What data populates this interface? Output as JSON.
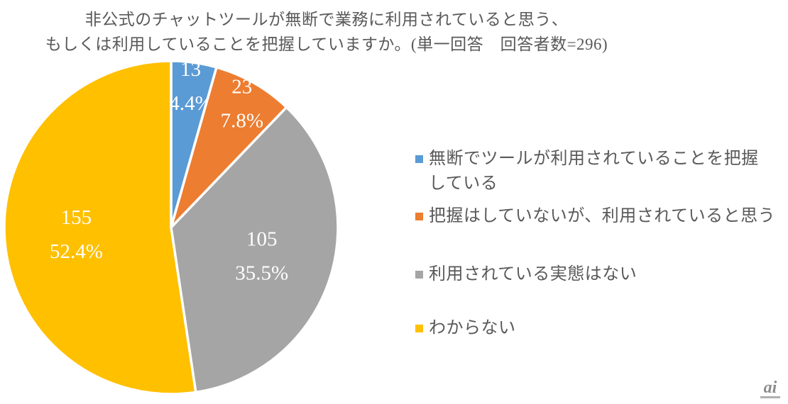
{
  "title": {
    "line1": "非公式のチャットツールが無断で業務に利用されていると思う、",
    "line2": "もしくは利用していることを把握していますか。(単一回答　回答者数=296)"
  },
  "chart_data": {
    "type": "pie",
    "title": "非公式のチャットツールが無断で業務に利用されていると思う、もしくは利用していることを把握していますか。",
    "subtitle": "単一回答　回答者数=296",
    "respondents_total": 296,
    "categories": [
      "無断でツールが利用されていることを把握している",
      "把握はしていないが、利用されていると思う",
      "利用されている実態はない",
      "わからない"
    ],
    "values": [
      13,
      23,
      105,
      155
    ],
    "percent_labels": [
      "4.4%",
      "7.8%",
      "35.5%",
      "52.4%"
    ],
    "colors": [
      "#5B9BD5",
      "#ED7D31",
      "#A5A5A5",
      "#FFC000"
    ],
    "start_angle_deg": 0,
    "direction": "clockwise",
    "slice_border_color": "#ffffff",
    "label_text_color": "#ffffff",
    "label_format": "value newline percent",
    "legend_position": "right"
  },
  "legend": {
    "items": [
      {
        "lines": [
          "無断でツールが利用されていることを把握",
          "している"
        ]
      },
      {
        "lines": [
          "把握はしていないが、利用されていると思う"
        ]
      },
      {
        "lines": [
          "利用されている実態はない"
        ]
      },
      {
        "lines": [
          "わからない"
        ]
      }
    ]
  },
  "logo": {
    "text": "ai"
  }
}
